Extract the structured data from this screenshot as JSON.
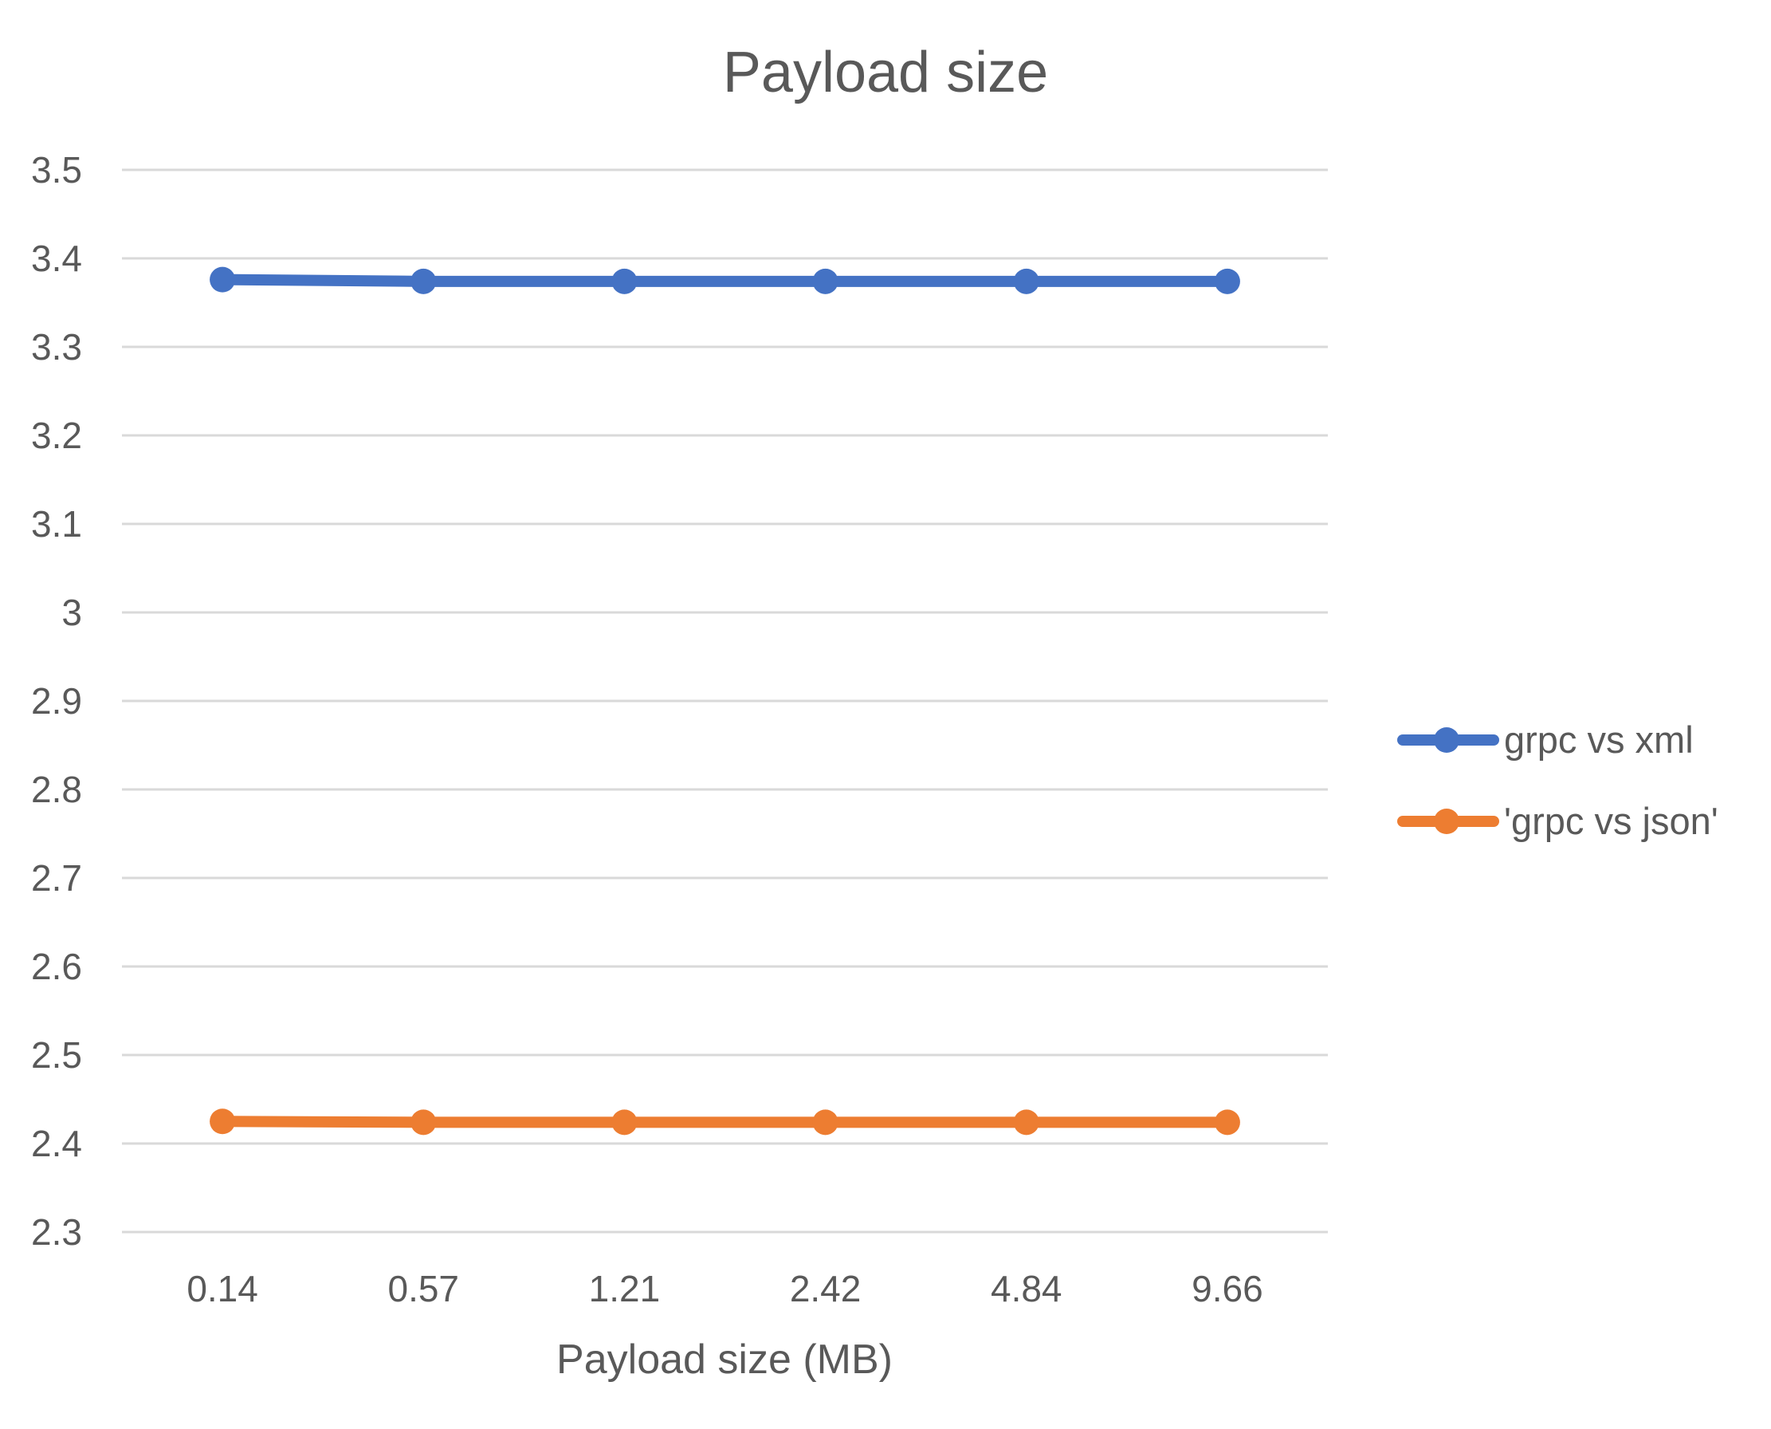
{
  "chart_data": {
    "type": "line",
    "title": "Payload size",
    "xlabel": "Payload size (MB)",
    "ylabel": "",
    "categories": [
      "0.14",
      "0.57",
      "1.21",
      "2.42",
      "4.84",
      "9.66"
    ],
    "ylim": [
      2.3,
      3.5
    ],
    "yticks": [
      "3.5",
      "3.4",
      "3.3",
      "3.2",
      "3.1",
      "3",
      "2.9",
      "2.8",
      "2.7",
      "2.6",
      "2.5",
      "2.4",
      "2.3"
    ],
    "grid": true,
    "legend_position": "right",
    "series": [
      {
        "name": "grpc vs xml",
        "color": "#4472C4",
        "values": [
          3.376,
          3.374,
          3.374,
          3.374,
          3.374,
          3.374
        ]
      },
      {
        "name": "'grpc vs json'",
        "color": "#ED7D31",
        "values": [
          2.425,
          2.424,
          2.424,
          2.424,
          2.424,
          2.424
        ]
      }
    ]
  }
}
